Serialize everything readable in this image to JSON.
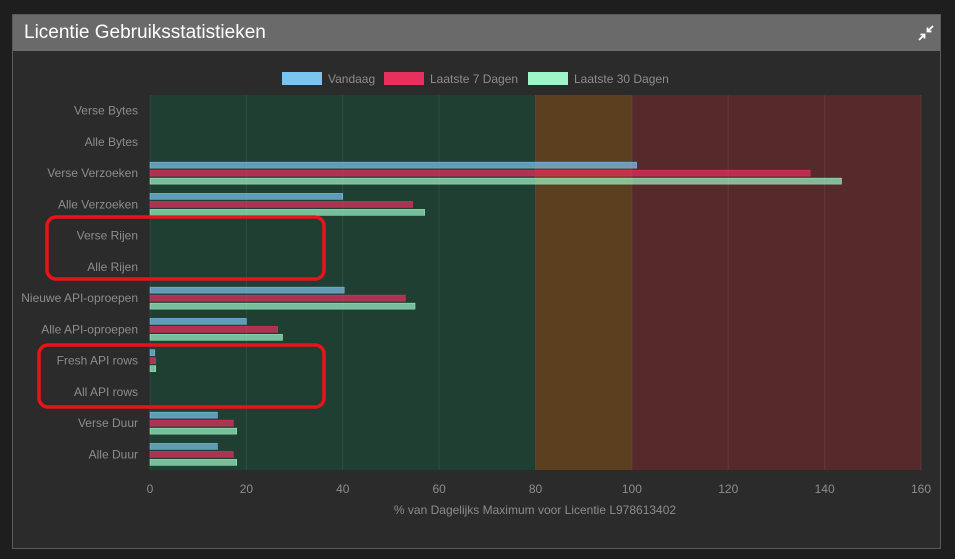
{
  "panel": {
    "title": "Licentie Gebruiksstatistieken",
    "collapse_icon": "collapse-arrows-icon"
  },
  "colors": {
    "series": [
      "#7cc4f0",
      "#e8305f",
      "#9ef5c8"
    ],
    "zones": [
      "#1f3f32",
      "#5c3f1e",
      "#562a2a"
    ],
    "highlight": "#e8141a",
    "text": "#8d8d8d"
  },
  "chart_data": {
    "type": "bar",
    "orientation": "horizontal",
    "categories": [
      "Verse Bytes",
      "Alle Bytes",
      "Verse Verzoeken",
      "Alle Verzoeken",
      "Verse Rijen",
      "Alle Rijen",
      "Nieuwe API-oproepen",
      "Alle API-oproepen",
      "Fresh API rows",
      "All API rows",
      "Verse Duur",
      "Alle Duur"
    ],
    "series": [
      {
        "name": "Vandaag",
        "values": [
          0,
          0,
          101,
          40,
          0,
          0,
          40.3,
          20,
          1,
          0,
          14,
          14
        ]
      },
      {
        "name": "Laatste 7 Dagen",
        "values": [
          0,
          0,
          137,
          54.5,
          0,
          0,
          53,
          26.5,
          1.2,
          0,
          17.3,
          17.3
        ]
      },
      {
        "name": "Laatste 30 Dagen",
        "values": [
          0,
          0,
          143.5,
          57,
          0,
          0,
          55,
          27.5,
          1.2,
          0,
          18,
          18
        ]
      }
    ],
    "xlabel": "% van Dagelijks Maximum voor Licentie L978613402",
    "ylabel": "",
    "xlim": [
      0,
      160
    ],
    "xticks": [
      "0",
      "20",
      "40",
      "60",
      "80",
      "100",
      "120",
      "140",
      "160"
    ],
    "zones": [
      {
        "from": 0,
        "to": 80
      },
      {
        "from": 80,
        "to": 100
      },
      {
        "from": 100,
        "to": 160
      }
    ],
    "legend_position": "top-center",
    "grid": true,
    "highlighted_groups": [
      [
        "Verse Rijen",
        "Alle Rijen"
      ],
      [
        "Fresh API rows",
        "All API rows"
      ]
    ]
  }
}
